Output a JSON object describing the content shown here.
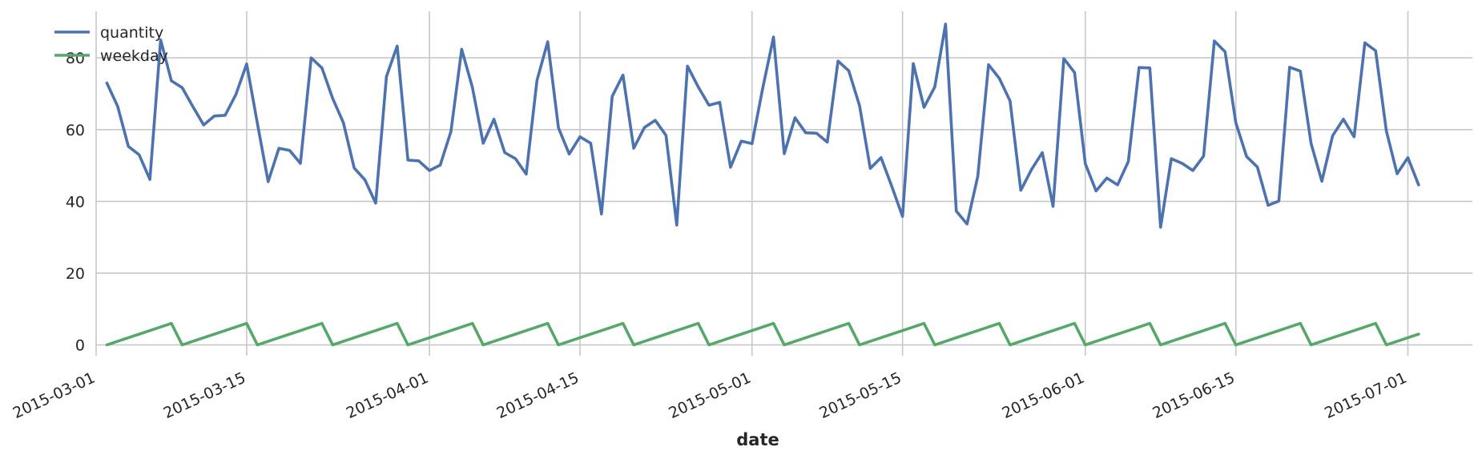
{
  "chart_data": {
    "type": "line",
    "x_start": "2015-03-02",
    "x_end": "2015-07-02",
    "xlim": [
      "2015-03-01",
      "2015-07-07"
    ],
    "ylim": [
      -3,
      93
    ],
    "yticks": [
      0,
      20,
      40,
      60,
      80
    ],
    "xticks": [
      {
        "date": "2015-03-01",
        "label": "2015-03-01"
      },
      {
        "date": "2015-03-15",
        "label": "2015-03-15"
      },
      {
        "date": "2015-04-01",
        "label": "2015-04-01"
      },
      {
        "date": "2015-04-15",
        "label": "2015-04-15"
      },
      {
        "date": "2015-05-01",
        "label": "2015-05-01"
      },
      {
        "date": "2015-05-15",
        "label": "2015-05-15"
      },
      {
        "date": "2015-06-01",
        "label": "2015-06-01"
      },
      {
        "date": "2015-06-15",
        "label": "2015-06-15"
      },
      {
        "date": "2015-07-01",
        "label": "2015-07-01"
      }
    ],
    "xlabel": "date",
    "ylabel": "",
    "grid": true,
    "legend_position": "top-left",
    "series": [
      {
        "name": "quantity",
        "color": "#4c72b0",
        "values": [
          73,
          66.5,
          55.3,
          53,
          46.1,
          85,
          73.6,
          71.7,
          66.4,
          61.3,
          63.8,
          64,
          69.8,
          78.3,
          61.7,
          45.5,
          54.8,
          54.2,
          50.6,
          80,
          77.2,
          68.7,
          61.9,
          49.3,
          46,
          39.5,
          74.8,
          83.3,
          51.5,
          51.3,
          48.6,
          50.1,
          59.5,
          82.4,
          71.7,
          56.2,
          62.9,
          53.6,
          51.9,
          47.6,
          73.7,
          84.5,
          60.5,
          53.2,
          58,
          56.2,
          36.5,
          69.3,
          75.2,
          54.8,
          60.6,
          62.6,
          58.4,
          33.4,
          77.7,
          71.9,
          66.8,
          67.6,
          49.5,
          56.8,
          56.1,
          71.6,
          85.8,
          53.3,
          63.3,
          59.1,
          59,
          56.5,
          79.1,
          76.4,
          66.7,
          49.2,
          52.2,
          44.2,
          35.8,
          78.4,
          66.2,
          71.9,
          89.4,
          37.3,
          33.7,
          47,
          78.1,
          74.3,
          68,
          43.1,
          48.9,
          53.6,
          38.6,
          79.8,
          75.9,
          50.5,
          42.9,
          46.5,
          44.6,
          51.1,
          77.3,
          77.2,
          32.8,
          51.9,
          50.6,
          48.6,
          52.6,
          84.7,
          81.7,
          61.9,
          52.5,
          49.6,
          38.9,
          40.1,
          77.4,
          76.3,
          56.1,
          45.6,
          58.3,
          62.9,
          58,
          84.2,
          82,
          59.6,
          47.7,
          52.2,
          44.6
        ]
      },
      {
        "name": "weekday",
        "color": "#55a868",
        "values": [
          0,
          1,
          2,
          3,
          4,
          5,
          6,
          0,
          1,
          2,
          3,
          4,
          5,
          6,
          0,
          1,
          2,
          3,
          4,
          5,
          6,
          0,
          1,
          2,
          3,
          4,
          5,
          6,
          0,
          1,
          2,
          3,
          4,
          5,
          6,
          0,
          1,
          2,
          3,
          4,
          5,
          6,
          0,
          1,
          2,
          3,
          4,
          5,
          6,
          0,
          1,
          2,
          3,
          4,
          5,
          6,
          0,
          1,
          2,
          3,
          4,
          5,
          6,
          0,
          1,
          2,
          3,
          4,
          5,
          6,
          0,
          1,
          2,
          3,
          4,
          5,
          6,
          0,
          1,
          2,
          3,
          4,
          5,
          6,
          0,
          1,
          2,
          3,
          4,
          5,
          6,
          0,
          1,
          2,
          3,
          4,
          5,
          6,
          0,
          1,
          2,
          3,
          4,
          5,
          6,
          0,
          1,
          2,
          3,
          4,
          5,
          6,
          0,
          1,
          2,
          3,
          4,
          5,
          6,
          0,
          1,
          2,
          3
        ]
      }
    ]
  }
}
